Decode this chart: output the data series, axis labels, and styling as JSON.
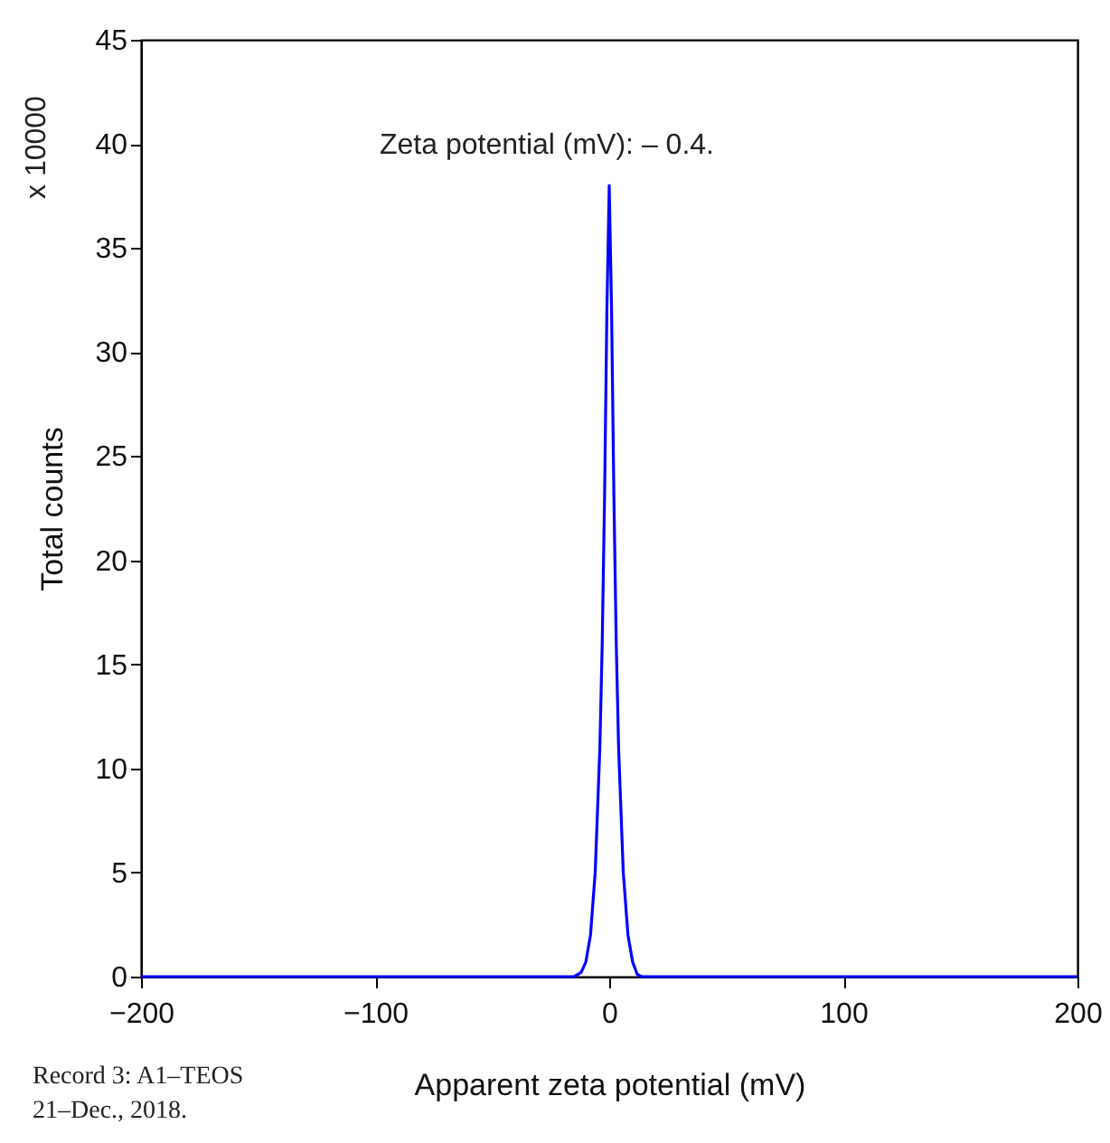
{
  "chart_data": {
    "type": "line",
    "xlabel": "Apparent zeta potential (mV)",
    "ylabel": "Total counts",
    "x": [
      -200,
      -20,
      -15,
      -12,
      -10,
      -8,
      -6,
      -4,
      -3,
      -2,
      -1,
      0,
      1,
      2,
      3,
      4,
      6,
      8,
      10,
      12,
      14,
      20,
      200
    ],
    "series": [
      {
        "color": "#0000ff",
        "values": [
          0,
          0,
          0,
          0.2,
          0.7,
          2,
          5,
          11,
          16,
          23,
          32,
          38,
          32,
          23,
          16,
          11,
          5,
          2,
          0.7,
          0.1,
          0,
          0,
          0
        ]
      }
    ],
    "xlim": [
      -200,
      200
    ],
    "xticks": [
      -200,
      -100,
      0,
      100,
      200
    ],
    "ylim": [
      0,
      45
    ],
    "yticks": [
      0,
      5,
      10,
      15,
      20,
      25,
      30,
      35,
      40,
      45
    ],
    "grid": false,
    "legend": false,
    "annotations": [
      "Zeta potential (mV): – 0.4.",
      "x 10000",
      "Record 3: A1–TEOS",
      "21–Dec., 2018."
    ]
  }
}
